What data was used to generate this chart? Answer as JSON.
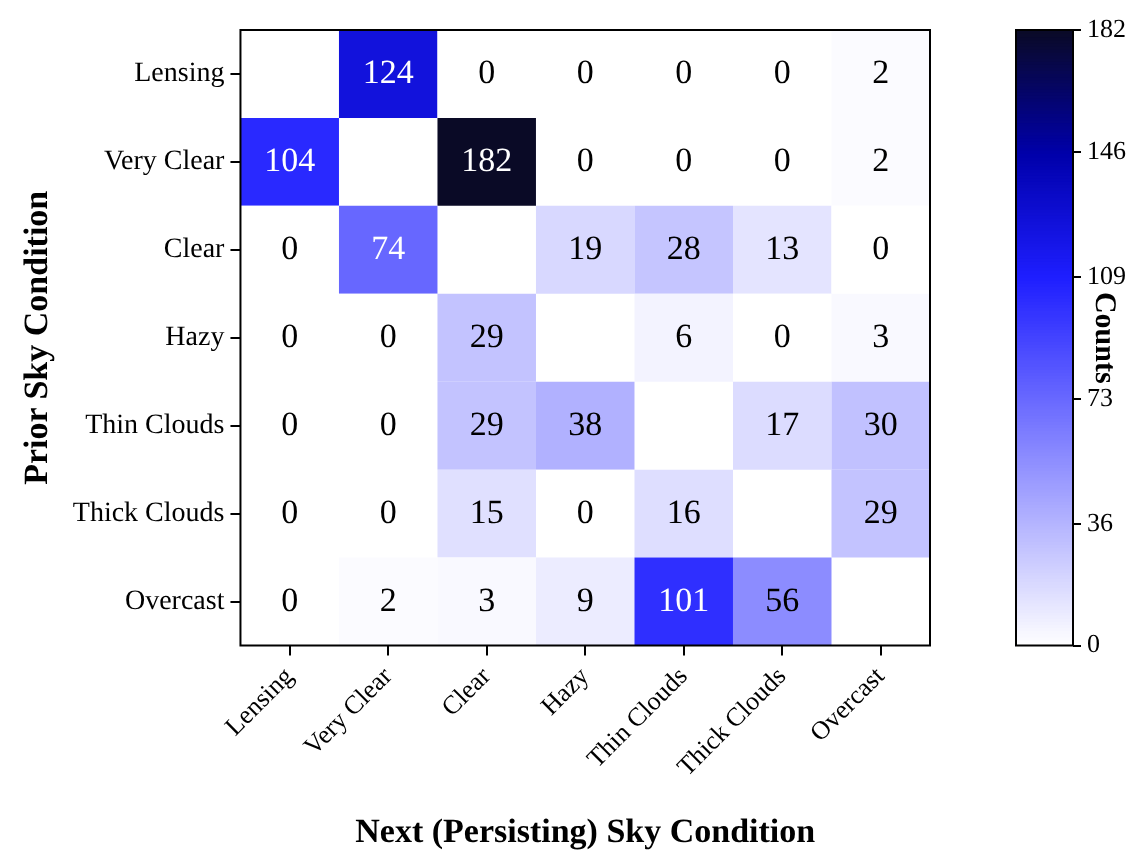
{
  "chart_data": {
    "type": "heatmap",
    "xlabel": "Next (Persisting) Sky Condition",
    "ylabel": "Prior Sky Condition",
    "clabel": "Counts",
    "categories": [
      "Lensing",
      "Very Clear",
      "Clear",
      "Hazy",
      "Thin Clouds",
      "Thick Clouds",
      "Overcast"
    ],
    "y_categories": [
      "Lensing",
      "Very Clear",
      "Clear",
      "Hazy",
      "Thin Clouds",
      "Thick Clouds",
      "Overcast"
    ],
    "cells": [
      [
        null,
        124,
        0,
        0,
        0,
        0,
        2
      ],
      [
        104,
        null,
        182,
        0,
        0,
        0,
        2
      ],
      [
        0,
        74,
        null,
        19,
        28,
        13,
        0
      ],
      [
        0,
        0,
        29,
        null,
        6,
        0,
        3
      ],
      [
        0,
        0,
        29,
        38,
        null,
        17,
        30
      ],
      [
        0,
        0,
        15,
        0,
        16,
        null,
        29
      ],
      [
        0,
        2,
        3,
        9,
        101,
        56,
        null
      ]
    ],
    "clim": [
      0,
      182
    ],
    "cticks": [
      0,
      36,
      73,
      109,
      146,
      182
    ],
    "data_labels": true
  }
}
